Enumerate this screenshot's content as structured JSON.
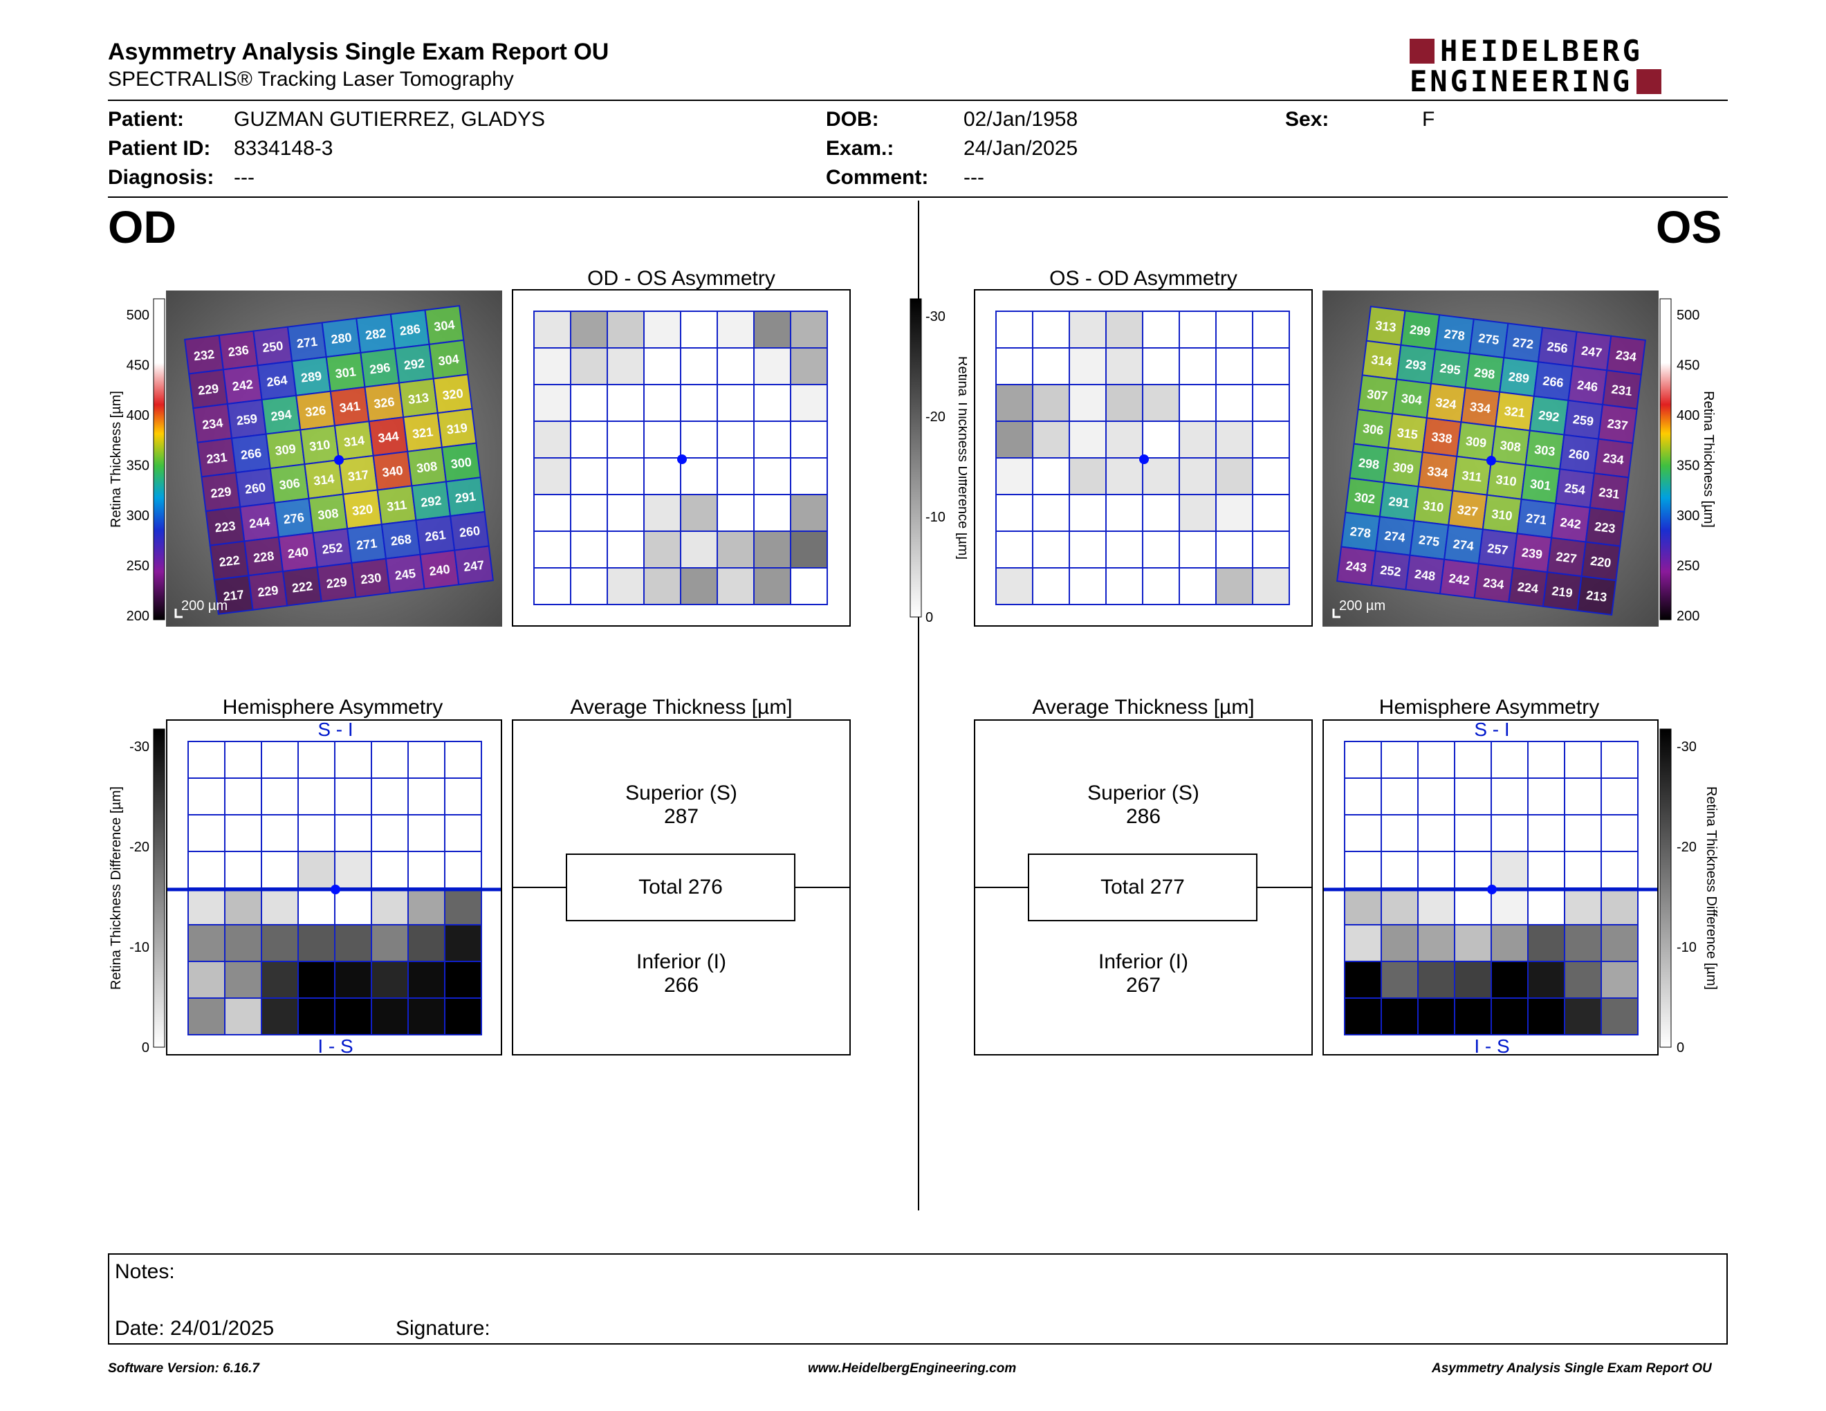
{
  "header": {
    "title": "Asymmetry Analysis Single Exam Report OU",
    "subtitle": "SPECTRALIS® Tracking Laser Tomography",
    "logo_line1": "HEIDELBERG",
    "logo_line2": "ENGINEERING",
    "brand_color": "#8c1b2e"
  },
  "patient": {
    "patient_label": "Patient:",
    "patient_value": "GUZMAN GUTIERREZ, GLADYS",
    "id_label": "Patient ID:",
    "id_value": "8334148-3",
    "diagnosis_label": "Diagnosis:",
    "diagnosis_value": "---",
    "dob_label": "DOB:",
    "dob_value": "02/Jan/1958",
    "exam_label": "Exam.:",
    "exam_value": "24/Jan/2025",
    "comment_label": "Comment:",
    "comment_value": "---",
    "sex_label": "Sex:",
    "sex_value": "F"
  },
  "od": {
    "eye": "OD",
    "asym_title": "OD - OS Asymmetry",
    "hemi_title": "Hemisphere Asymmetry",
    "hemi_top": "S - I",
    "hemi_bottom": "I - S",
    "avg_title": "Average Thickness [µm]",
    "superior_label": "Superior (S)",
    "superior_value": "287",
    "total_label": "Total 276",
    "inferior_label": "Inferior (I)",
    "inferior_value": "266",
    "scale_label": "200 µm",
    "thickness_grid": [
      [
        232,
        236,
        250,
        271,
        280,
        282,
        286,
        304
      ],
      [
        229,
        242,
        264,
        289,
        301,
        296,
        292,
        304
      ],
      [
        234,
        259,
        294,
        326,
        341,
        326,
        313,
        320
      ],
      [
        231,
        266,
        309,
        310,
        314,
        344,
        321,
        319
      ],
      [
        229,
        260,
        306,
        314,
        317,
        340,
        308,
        300
      ],
      [
        223,
        244,
        276,
        308,
        320,
        311,
        292,
        291
      ],
      [
        222,
        228,
        240,
        252,
        271,
        268,
        261,
        260
      ],
      [
        217,
        229,
        222,
        229,
        230,
        245,
        240,
        247
      ]
    ],
    "asym_grid": [
      [
        0.1,
        0.35,
        0.2,
        0.05,
        0,
        0.05,
        0.45,
        0.3
      ],
      [
        0.05,
        0.15,
        0.1,
        0,
        0,
        0,
        0.05,
        0.3
      ],
      [
        0.05,
        0,
        0,
        0,
        0,
        0,
        0,
        0.05
      ],
      [
        0.1,
        0,
        0,
        0,
        0,
        0,
        0,
        0
      ],
      [
        0.1,
        0,
        0,
        0,
        0,
        0,
        0,
        0
      ],
      [
        0,
        0,
        0,
        0.1,
        0.25,
        0,
        0,
        0.35
      ],
      [
        0,
        0,
        0,
        0.2,
        0.1,
        0.25,
        0.4,
        0.55
      ],
      [
        0,
        0,
        0.1,
        0.2,
        0.4,
        0.15,
        0.4,
        0
      ]
    ],
    "hemi_grid": [
      [
        0,
        0,
        0,
        0,
        0,
        0,
        0,
        0
      ],
      [
        0,
        0,
        0,
        0,
        0,
        0,
        0,
        0
      ],
      [
        0,
        0,
        0,
        0,
        0,
        0,
        0,
        0
      ],
      [
        0,
        0,
        0,
        0.15,
        0.1,
        0,
        0,
        0
      ],
      [
        0.12,
        0.25,
        0.12,
        0,
        0,
        0.15,
        0.35,
        0.6
      ],
      [
        0.45,
        0.5,
        0.6,
        0.65,
        0.65,
        0.5,
        0.7,
        0.9
      ],
      [
        0.25,
        0.45,
        0.8,
        1,
        0.95,
        0.85,
        0.95,
        1
      ],
      [
        0.45,
        0.2,
        0.85,
        1,
        1,
        0.95,
        0.95,
        1
      ]
    ]
  },
  "os": {
    "eye": "OS",
    "asym_title": "OS - OD Asymmetry",
    "hemi_title": "Hemisphere Asymmetry",
    "hemi_top": "S - I",
    "hemi_bottom": "I - S",
    "avg_title": "Average Thickness [µm]",
    "superior_label": "Superior (S)",
    "superior_value": "286",
    "total_label": "Total 277",
    "inferior_label": "Inferior (I)",
    "inferior_value": "267",
    "scale_label": "200 µm",
    "thickness_grid": [
      [
        313,
        299,
        278,
        275,
        272,
        256,
        247,
        234
      ],
      [
        314,
        293,
        295,
        298,
        289,
        266,
        246,
        231
      ],
      [
        307,
        304,
        324,
        334,
        321,
        292,
        259,
        237
      ],
      [
        306,
        315,
        338,
        309,
        308,
        303,
        260,
        234
      ],
      [
        298,
        309,
        334,
        311,
        310,
        301,
        254,
        231
      ],
      [
        302,
        291,
        310,
        327,
        310,
        271,
        242,
        223
      ],
      [
        278,
        274,
        275,
        274,
        257,
        239,
        227,
        220
      ],
      [
        243,
        252,
        248,
        242,
        234,
        224,
        219,
        213
      ]
    ],
    "asym_grid": [
      [
        0,
        0,
        0.1,
        0.15,
        0,
        0,
        0,
        0
      ],
      [
        0,
        0,
        0.05,
        0.1,
        0,
        0,
        0,
        0
      ],
      [
        0.35,
        0.2,
        0.05,
        0.2,
        0.15,
        0,
        0,
        0
      ],
      [
        0.4,
        0.15,
        0.05,
        0.1,
        0,
        0.1,
        0.1,
        0
      ],
      [
        0.05,
        0,
        0.15,
        0.1,
        0.1,
        0.1,
        0.15,
        0
      ],
      [
        0,
        0,
        0,
        0,
        0,
        0.1,
        0.05,
        0
      ],
      [
        0,
        0,
        0,
        0,
        0,
        0,
        0,
        0
      ],
      [
        0.1,
        0,
        0,
        0,
        0,
        0,
        0.25,
        0.1
      ]
    ],
    "hemi_grid": [
      [
        0,
        0,
        0,
        0,
        0,
        0,
        0,
        0
      ],
      [
        0,
        0,
        0,
        0,
        0,
        0,
        0,
        0
      ],
      [
        0,
        0,
        0,
        0,
        0,
        0,
        0,
        0
      ],
      [
        0,
        0,
        0,
        0,
        0.1,
        0,
        0,
        0
      ],
      [
        0.25,
        0.2,
        0.1,
        0,
        0.05,
        0,
        0.15,
        0.2
      ],
      [
        0.15,
        0.4,
        0.35,
        0.25,
        0.4,
        0.65,
        0.55,
        0.45
      ],
      [
        1,
        0.6,
        0.7,
        0.75,
        1,
        0.9,
        0.6,
        0.35
      ],
      [
        1,
        1,
        1,
        1,
        1,
        1,
        0.85,
        0.6
      ]
    ]
  },
  "scales": {
    "thickness_ticks": [
      "500",
      "450",
      "400",
      "350",
      "300",
      "250",
      "200"
    ],
    "thickness_axis_label": "Retina Thickness [µm]",
    "diff_ticks": [
      "-30",
      "-20",
      "-10",
      "0"
    ],
    "diff_axis_label": "Retina Thickness Difference [µm]"
  },
  "notes": {
    "notes_label": "Notes:",
    "date_label": "Date: 24/01/2025",
    "signature_label": "Signature:"
  },
  "footer": {
    "software": "Software Version: 6.16.7",
    "website": "www.HeidelbergEngineering.com",
    "report": "Asymmetry Analysis Single Exam Report OU"
  }
}
